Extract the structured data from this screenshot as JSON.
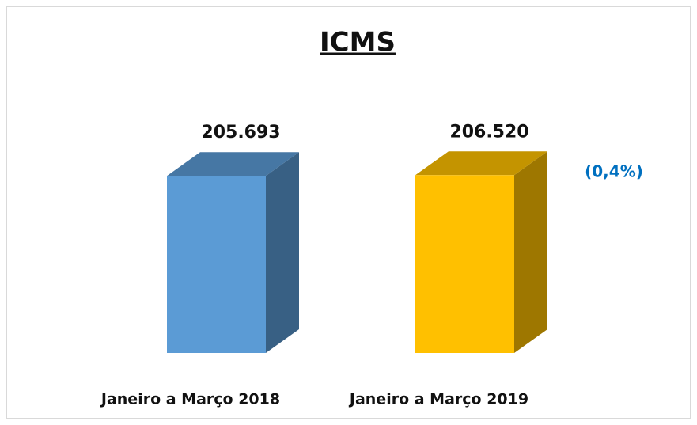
{
  "chart_data": {
    "type": "bar3d",
    "title": "ICMS",
    "categories": [
      "Janeiro a Março 2018",
      "Janeiro a Março 2019"
    ],
    "values": [
      205693,
      206520
    ],
    "value_labels": [
      "205.693",
      "206.520"
    ],
    "colors": [
      "#5b9bd5",
      "#ffc000"
    ],
    "ylim": [
      0,
      250000
    ],
    "annotations": [
      "(0,4%)"
    ],
    "annotation_color": "#0070c0"
  }
}
